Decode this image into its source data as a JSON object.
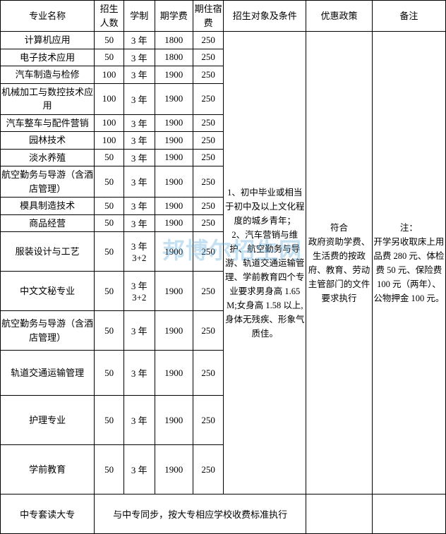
{
  "headers": {
    "name": "专业名称",
    "enroll": "招生人数",
    "years": "学制",
    "tuition": "期学费",
    "dorm": "期住宿费",
    "conditions": "招生对象及条件",
    "policy": "优惠政策",
    "note": "备注"
  },
  "rows": [
    {
      "name": "计算机应用",
      "enroll": "50",
      "years": "3 年",
      "tuition": "1800",
      "dorm": "250",
      "h": "normal"
    },
    {
      "name": "电子技术应用",
      "enroll": "50",
      "years": "3 年",
      "tuition": "1800",
      "dorm": "250",
      "h": "normal"
    },
    {
      "name": "汽车制造与检修",
      "enroll": "100",
      "years": "3 年",
      "tuition": "1900",
      "dorm": "250",
      "h": "normal"
    },
    {
      "name": "机械加工与数控技术应用",
      "enroll": "100",
      "years": "3 年",
      "tuition": "1900",
      "dorm": "250",
      "h": "double"
    },
    {
      "name": "汽车整车与配件营销",
      "enroll": "100",
      "years": "3 年",
      "tuition": "1900",
      "dorm": "250",
      "h": "normal"
    },
    {
      "name": "园林技术",
      "enroll": "100",
      "years": "3 年",
      "tuition": "1900",
      "dorm": "250",
      "h": "normal"
    },
    {
      "name": "淡水养殖",
      "enroll": "50",
      "years": "3 年",
      "tuition": "1900",
      "dorm": "250",
      "h": "normal"
    },
    {
      "name": "航空勤务与导游（含酒店管理）",
      "enroll": "50",
      "years": "3 年",
      "tuition": "1900",
      "dorm": "250",
      "h": "double"
    },
    {
      "name": "模具制造技术",
      "enroll": "50",
      "years": "3 年",
      "tuition": "1900",
      "dorm": "250",
      "h": "normal"
    },
    {
      "name": "商品经营",
      "enroll": "50",
      "years": "3 年",
      "tuition": "1900",
      "dorm": "250",
      "h": "normal"
    },
    {
      "name": "服装设计与工艺",
      "enroll": "50",
      "years": "3 年3+2",
      "tuition": "1900",
      "dorm": "250",
      "h": "tall"
    },
    {
      "name": "中文文秘专业",
      "enroll": "50",
      "years": "3 年3+2",
      "tuition": "1900",
      "dorm": "250",
      "h": "tall"
    },
    {
      "name": "航空勤务与导游（含酒店管理）",
      "enroll": "50",
      "years": "3 年",
      "tuition": "1900",
      "dorm": "250",
      "h": "tall"
    },
    {
      "name": "轨道交通运输管理",
      "enroll": "50",
      "years": "3 年",
      "tuition": "1900",
      "dorm": "250",
      "h": "vtall"
    },
    {
      "name": "护理专业",
      "enroll": "50",
      "years": "3 年",
      "tuition": "1900",
      "dorm": "250",
      "h": "vvtall"
    },
    {
      "name": "学前教育",
      "enroll": "50",
      "years": "3 年",
      "tuition": "1900",
      "dorm": "250",
      "h": "vvtall"
    }
  ],
  "conditions_text": "1、初中毕业或相当于初中及以上文化程度的城乡青年；\n2、汽车营销与维护、航空勤务与导游、轨道交通运输管理、学前教育四个专业要求男身高 1.65M;女身高 1.58 以上, 身体无残疾、形象气质佳。",
  "policy_text": "符合\n政府资助学费、生活费的按政府、教育、劳动主管部门的文件要求执行",
  "note_text": "注：\n开学另收取床上用品费 280 元、体检费 50 元、保险费 100 元（两年）、公物押金 100 元。",
  "footer": {
    "name": "中专套读大专",
    "text": "与中专同步，按大专相应学校收费标准执行"
  },
  "watermark": "邦博尔招生网",
  "colors": {
    "border": "#000000",
    "text": "#000000",
    "background": "#ffffff",
    "watermark": "rgba(90,165,215,0.35)"
  },
  "fontsize_body": 13,
  "fontsize_watermark": 32
}
